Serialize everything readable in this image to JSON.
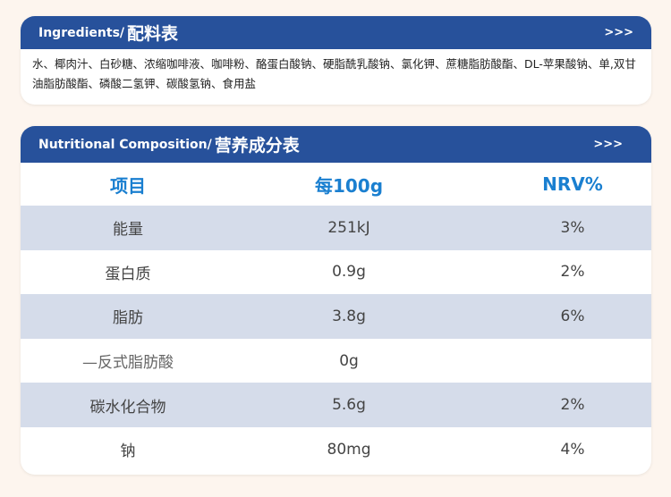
{
  "ingredients": {
    "title_en": "Ingredients/",
    "title_zh": "配料表",
    "arrows": ">>>",
    "text": "水、椰肉汁、白砂糖、浓缩咖啡液、咖啡粉、酪蛋白酸钠、硬脂酰乳酸钠、氯化钾、蔗糖脂肪酸酯、DL-苹果酸钠、单,双甘油脂肪酸酯、磷酸二氢钾、碳酸氢钠、食用盐"
  },
  "nutrition": {
    "title_en": "Nutritional Composition/",
    "title_zh": "营养成分表",
    "arrows": ">>>",
    "columns": [
      "项目",
      "每100g",
      "NRV%"
    ],
    "rows": [
      [
        "能量",
        "251kJ",
        "3%"
      ],
      [
        "蛋白质",
        "0.9g",
        "2%"
      ],
      [
        "脂肪",
        "3.8g",
        "6%"
      ],
      [
        "—反式脂肪酸",
        "0g",
        ""
      ],
      [
        "碳水化合物",
        "5.6g",
        "2%"
      ],
      [
        "钠",
        "80mg",
        "4%"
      ]
    ]
  }
}
